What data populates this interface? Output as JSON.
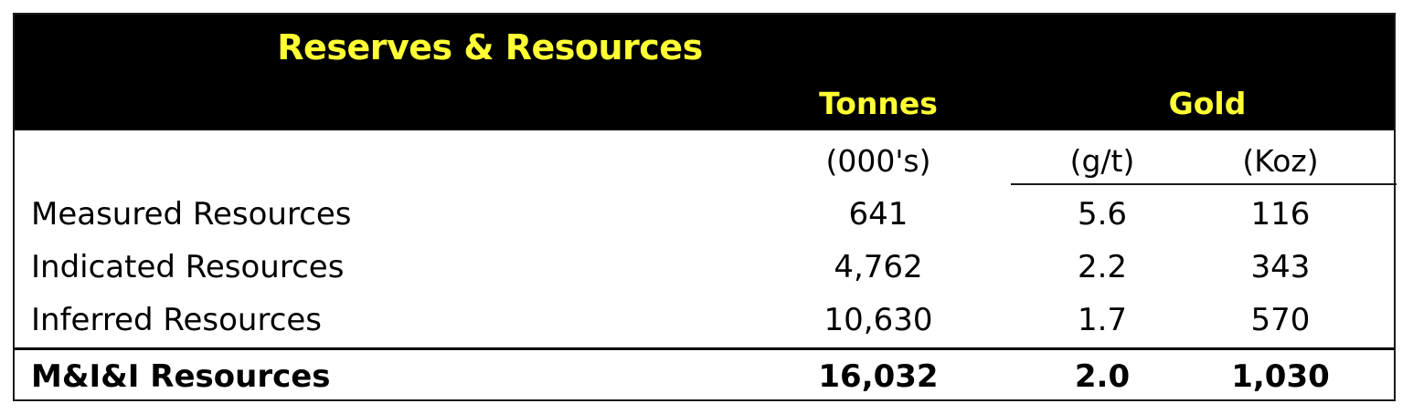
{
  "table": {
    "title": "Reserves & Resources",
    "headers": {
      "tonnes": "Tonnes",
      "gold": "Gold"
    },
    "units": {
      "tonnes": "(000's)",
      "grade": "(g/t)",
      "koz": "(Koz)"
    },
    "rows": [
      {
        "label": "Measured Resources",
        "tonnes": "641",
        "grade": "5.6",
        "koz": "116"
      },
      {
        "label": "Indicated Resources",
        "tonnes": "4,762",
        "grade": "2.2",
        "koz": "343"
      },
      {
        "label": "Inferred Resources",
        "tonnes": "10,630",
        "grade": "1.7",
        "koz": "570"
      }
    ],
    "total": {
      "label": "M&I&I Resources",
      "tonnes": "16,032",
      "grade": "2.0",
      "koz": "1,030"
    }
  },
  "colors": {
    "header_background": "#000000",
    "header_text": "#ffff33",
    "body_text": "#000000"
  }
}
